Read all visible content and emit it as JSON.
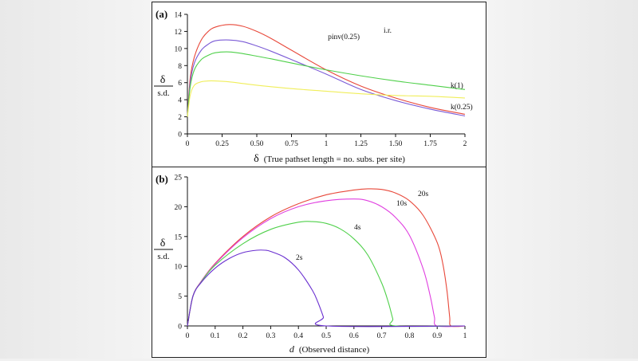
{
  "colors": {
    "red": "#e8483a",
    "purple": "#7b5bd6",
    "green": "#4fd04a",
    "yellow": "#f0ee5a",
    "magenta": "#e040e0",
    "violet": "#6a2fd0",
    "axis": "#111111"
  },
  "panel_a": {
    "label": "(a)",
    "ylabel_top": "δ",
    "ylabel_bottom": "s.d.",
    "xlabel_symbol": "δ",
    "xlabel_text": "(True pathset length = no. subs. per site)"
  },
  "panel_b": {
    "label": "(b)",
    "ylabel_top": "δ",
    "ylabel_bottom": "s.d.",
    "xlabel_symbol": "d",
    "xlabel_text": "(Observed distance)"
  },
  "chart_data": [
    {
      "type": "line",
      "title": "(a)",
      "xlabel": "δ (True pathset length = no. subs. per site)",
      "ylabel": "δ / s.d.",
      "xlim": [
        0,
        2
      ],
      "ylim": [
        0,
        14
      ],
      "xticks": [
        "0",
        "0.25",
        "0.50",
        "0.75",
        "1",
        "1.25",
        "1.50",
        "1.75",
        "2"
      ],
      "yticks": [
        "0",
        "2",
        "4",
        "6",
        "8",
        "10",
        "12",
        "14"
      ],
      "series": [
        {
          "name": "i.r.",
          "color": "red",
          "x": [
            0,
            0.02,
            0.05,
            0.1,
            0.15,
            0.2,
            0.3,
            0.4,
            0.5,
            0.6,
            0.75,
            1.0,
            1.25,
            1.5,
            1.75,
            2.0
          ],
          "y": [
            2.0,
            6.5,
            9.0,
            11.0,
            12.0,
            12.5,
            12.8,
            12.6,
            12.0,
            11.2,
            9.8,
            7.5,
            5.6,
            4.2,
            3.1,
            2.3
          ]
        },
        {
          "name": "pinv(0.25)",
          "color": "purple",
          "x": [
            0,
            0.02,
            0.05,
            0.1,
            0.15,
            0.2,
            0.3,
            0.4,
            0.5,
            0.6,
            0.75,
            1.0,
            1.25,
            1.5,
            1.75,
            2.0
          ],
          "y": [
            2.0,
            6.0,
            8.3,
            9.8,
            10.5,
            10.9,
            11.0,
            10.8,
            10.3,
            9.7,
            8.7,
            7.0,
            5.2,
            3.9,
            2.9,
            2.1
          ]
        },
        {
          "name": "k(1)",
          "color": "green",
          "x": [
            0,
            0.02,
            0.05,
            0.1,
            0.15,
            0.2,
            0.3,
            0.4,
            0.5,
            0.6,
            0.75,
            1.0,
            1.25,
            1.5,
            1.75,
            2.0
          ],
          "y": [
            2.0,
            5.5,
            7.5,
            8.7,
            9.2,
            9.5,
            9.6,
            9.4,
            9.1,
            8.8,
            8.3,
            7.5,
            6.8,
            6.2,
            5.7,
            5.2
          ]
        },
        {
          "name": "k(0.25)",
          "color": "yellow",
          "x": [
            0,
            0.02,
            0.05,
            0.1,
            0.15,
            0.2,
            0.3,
            0.4,
            0.5,
            0.75,
            1.0,
            1.25,
            1.5,
            1.75,
            2.0
          ],
          "y": [
            2.0,
            4.5,
            5.7,
            6.1,
            6.2,
            6.2,
            6.1,
            5.9,
            5.7,
            5.3,
            5.0,
            4.7,
            4.5,
            4.4,
            4.2
          ]
        }
      ],
      "annotations": [
        "i.r.",
        "pinv(0.25)",
        "k(1)",
        "k(0.25)"
      ]
    },
    {
      "type": "line",
      "title": "(b)",
      "xlabel": "d (Observed distance)",
      "ylabel": "δ / s.d.",
      "xlim": [
        0,
        1
      ],
      "ylim": [
        0,
        25
      ],
      "xticks": [
        "0",
        "0.1",
        "0.2",
        "0.3",
        "0.4",
        "0.5",
        "0.6",
        "0.7",
        "0.8",
        "0.9",
        "1"
      ],
      "yticks": [
        "0",
        "5",
        "10",
        "15",
        "20",
        "25"
      ],
      "series": [
        {
          "name": "20s",
          "color": "red",
          "x": [
            0,
            0.02,
            0.05,
            0.1,
            0.2,
            0.3,
            0.4,
            0.5,
            0.6,
            0.65,
            0.7,
            0.75,
            0.8,
            0.85,
            0.9,
            0.92,
            0.935,
            0.945,
            0.95,
            1.0
          ],
          "y": [
            0,
            5.0,
            7.5,
            10.5,
            15.0,
            18.3,
            20.5,
            22.0,
            22.8,
            23.0,
            22.9,
            22.3,
            21.0,
            18.5,
            14.0,
            10.5,
            6.0,
            1.5,
            0,
            0
          ]
        },
        {
          "name": "10s",
          "color": "magenta",
          "x": [
            0,
            0.02,
            0.05,
            0.1,
            0.2,
            0.3,
            0.4,
            0.5,
            0.6,
            0.65,
            0.7,
            0.75,
            0.8,
            0.85,
            0.875,
            0.89,
            0.9,
            1.0
          ],
          "y": [
            0,
            5.0,
            7.5,
            10.4,
            14.8,
            18.0,
            20.0,
            21.0,
            21.3,
            21.0,
            20.0,
            18.2,
            15.2,
            9.5,
            5.0,
            1.5,
            0,
            0
          ]
        },
        {
          "name": "4s",
          "color": "green",
          "x": [
            0,
            0.02,
            0.05,
            0.1,
            0.2,
            0.3,
            0.4,
            0.45,
            0.5,
            0.55,
            0.6,
            0.65,
            0.7,
            0.725,
            0.74,
            0.75,
            1.0
          ],
          "y": [
            0,
            5.0,
            7.4,
            10.2,
            13.8,
            16.2,
            17.4,
            17.5,
            17.2,
            16.3,
            14.6,
            11.9,
            7.2,
            3.8,
            1.2,
            0,
            1e-09
          ]
        },
        {
          "name": "2s",
          "color": "violet",
          "x": [
            0,
            0.02,
            0.05,
            0.1,
            0.15,
            0.2,
            0.25,
            0.28,
            0.3,
            0.35,
            0.4,
            0.45,
            0.47,
            0.49,
            0.5,
            1.0
          ],
          "y": [
            0,
            5.0,
            7.3,
            9.7,
            11.3,
            12.3,
            12.7,
            12.7,
            12.5,
            11.5,
            9.4,
            6.0,
            4.0,
            1.5,
            0,
            0
          ]
        }
      ],
      "annotations": [
        "20s",
        "10s",
        "4s",
        "2s"
      ]
    }
  ]
}
